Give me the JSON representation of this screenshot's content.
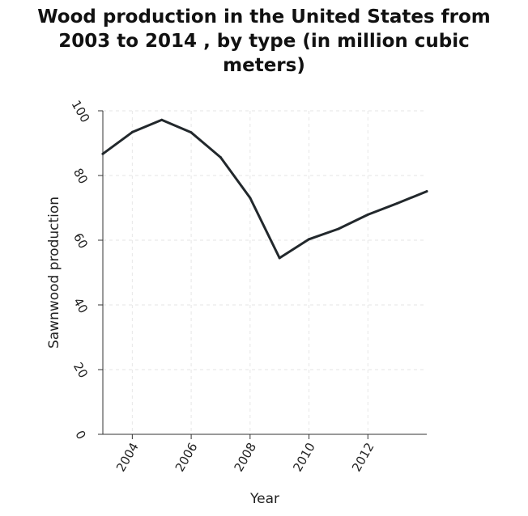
{
  "chart_data": {
    "type": "line",
    "title_lines": [
      "Wood production in the United States from",
      "2003 to 2014 , by type (in million cubic",
      "meters)"
    ],
    "xlabel": "Year",
    "ylabel": "Sawnwood production",
    "xlim": [
      2003,
      2014
    ],
    "ylim": [
      0,
      100
    ],
    "x_ticks": [
      2004,
      2006,
      2008,
      2010,
      2012
    ],
    "y_ticks": [
      0,
      20,
      40,
      60,
      80,
      100
    ],
    "grid": true,
    "line_color": "#22282c",
    "grid_color": "#e6e6e6",
    "series": [
      {
        "x": [
          2003,
          2004,
          2005,
          2006,
          2007,
          2008,
          2009,
          2010,
          2011,
          2012,
          2013,
          2014
        ],
        "values": [
          86.7,
          93.4,
          97.2,
          93.3,
          85.6,
          73.1,
          54.5,
          60.3,
          63.5,
          67.9,
          71.4,
          75.1
        ]
      }
    ]
  }
}
